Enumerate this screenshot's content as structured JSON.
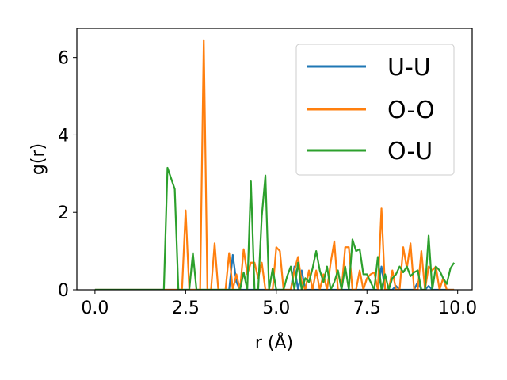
{
  "chart_data": {
    "type": "line",
    "xlabel": "r (Å)",
    "ylabel": "g(r)",
    "xlim": [
      -0.5,
      10.4
    ],
    "ylim": [
      0,
      6.75
    ],
    "xticks": [
      0.0,
      2.5,
      5.0,
      7.5,
      10.0
    ],
    "xtick_labels": [
      "0.0",
      "2.5",
      "5.0",
      "7.5",
      "10.0"
    ],
    "yticks": [
      0,
      2,
      4,
      6
    ],
    "ytick_labels": [
      "0",
      "2",
      "4",
      "6"
    ],
    "grid": false,
    "legend_position": "top-right",
    "series": [
      {
        "name": "U-U",
        "color": "#1f77b4",
        "x": [
          0.0,
          3.7,
          3.8,
          3.9,
          4.0,
          5.4,
          5.5,
          5.6,
          5.7,
          5.8,
          7.8,
          7.9,
          8.0,
          8.2,
          8.3,
          8.4,
          8.8,
          8.9,
          9.0,
          9.1,
          9.2,
          9.3,
          9.9
        ],
        "values": [
          0.0,
          0.0,
          0.9,
          0.2,
          0.0,
          0.0,
          0.6,
          0.0,
          0.5,
          0.0,
          0.0,
          0.6,
          0.0,
          0.0,
          0.1,
          0.0,
          0.0,
          0.2,
          0.0,
          0.0,
          0.1,
          0.0,
          0.0
        ]
      },
      {
        "name": "O-O",
        "color": "#ff7f0e",
        "x": [
          0.0,
          2.4,
          2.5,
          2.6,
          2.9,
          3.0,
          3.1,
          3.2,
          3.3,
          3.4,
          3.6,
          3.7,
          3.8,
          3.9,
          4.0,
          4.1,
          4.2,
          4.3,
          4.4,
          4.5,
          4.6,
          4.7,
          4.8,
          4.9,
          5.0,
          5.1,
          5.2,
          5.3,
          5.4,
          5.5,
          5.6,
          5.7,
          5.8,
          5.9,
          6.0,
          6.1,
          6.2,
          6.3,
          6.4,
          6.5,
          6.6,
          6.7,
          6.8,
          6.9,
          7.0,
          7.1,
          7.2,
          7.3,
          7.4,
          7.5,
          7.6,
          7.7,
          7.8,
          7.9,
          8.0,
          8.1,
          8.2,
          8.3,
          8.4,
          8.5,
          8.6,
          8.7,
          8.8,
          8.9,
          9.0,
          9.1,
          9.2,
          9.3,
          9.4,
          9.5,
          9.6,
          9.7,
          9.8,
          9.9
        ],
        "values": [
          0.0,
          0.0,
          2.05,
          0.0,
          0.0,
          6.45,
          0.0,
          0.0,
          1.2,
          0.0,
          0.0,
          0.95,
          0.0,
          0.4,
          0.0,
          1.05,
          0.4,
          0.7,
          0.7,
          0.3,
          0.7,
          0.0,
          0.0,
          0.0,
          1.1,
          1.0,
          0.0,
          0.0,
          0.0,
          0.5,
          0.85,
          0.2,
          0.0,
          0.5,
          0.0,
          0.5,
          0.0,
          0.4,
          0.0,
          0.7,
          1.25,
          0.0,
          0.0,
          1.1,
          1.1,
          0.0,
          0.0,
          0.5,
          0.0,
          0.3,
          0.4,
          0.45,
          0.0,
          2.1,
          0.0,
          0.0,
          0.5,
          0.0,
          0.0,
          1.1,
          0.55,
          1.2,
          0.0,
          0.0,
          1.0,
          0.0,
          0.6,
          0.5,
          0.6,
          0.0,
          0.3,
          0.0,
          0.0,
          0.0
        ]
      },
      {
        "name": "O-U",
        "color": "#2ca02c",
        "x": [
          0.0,
          1.9,
          2.0,
          2.2,
          2.3,
          2.6,
          2.7,
          2.8,
          3.9,
          4.0,
          4.1,
          4.2,
          4.3,
          4.4,
          4.5,
          4.6,
          4.7,
          4.8,
          4.9,
          5.0,
          5.1,
          5.2,
          5.3,
          5.4,
          5.5,
          5.6,
          5.7,
          5.8,
          5.9,
          6.0,
          6.1,
          6.2,
          6.3,
          6.4,
          6.5,
          6.6,
          6.7,
          6.8,
          6.9,
          7.0,
          7.1,
          7.2,
          7.3,
          7.4,
          7.5,
          7.6,
          7.7,
          7.8,
          7.9,
          8.0,
          8.1,
          8.2,
          8.3,
          8.4,
          8.5,
          8.6,
          8.7,
          8.8,
          8.9,
          9.0,
          9.1,
          9.2,
          9.3,
          9.4,
          9.5,
          9.6,
          9.7,
          9.8,
          9.9
        ],
        "values": [
          0.0,
          0.0,
          3.15,
          2.6,
          0.0,
          0.0,
          0.95,
          0.0,
          0.0,
          0.0,
          0.45,
          0.0,
          2.8,
          0.0,
          0.0,
          1.9,
          2.95,
          0.0,
          0.55,
          0.0,
          0.0,
          0.0,
          0.35,
          0.6,
          0.0,
          0.7,
          0.0,
          0.3,
          0.2,
          0.55,
          1.0,
          0.5,
          0.2,
          0.6,
          0.0,
          0.2,
          0.5,
          0.0,
          0.6,
          0.0,
          1.3,
          1.0,
          1.05,
          0.4,
          0.4,
          0.2,
          0.0,
          0.85,
          0.0,
          0.4,
          0.0,
          0.3,
          0.4,
          0.6,
          0.45,
          0.6,
          0.35,
          0.45,
          0.5,
          0.0,
          0.0,
          1.4,
          0.0,
          0.6,
          0.5,
          0.3,
          0.15,
          0.55,
          0.7
        ]
      }
    ]
  }
}
